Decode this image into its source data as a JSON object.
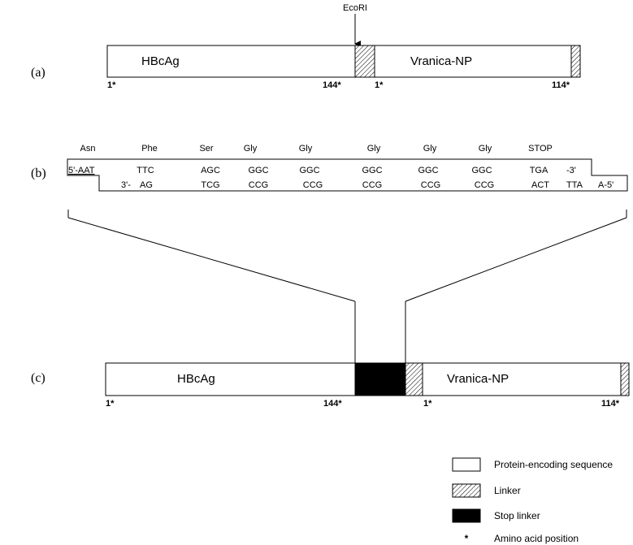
{
  "panel_a": {
    "panel_label": "(a)",
    "restriction_site": "EcoRI",
    "segment_left": "HBcAg",
    "segment_right": "Vranica-NP",
    "positions": [
      "1*",
      "144*",
      "1*",
      "114*"
    ]
  },
  "panel_b": {
    "panel_label": "(b)",
    "amino_acids": [
      "Asn",
      "Phe",
      "Ser",
      "Gly",
      "Gly",
      "Gly",
      "Gly",
      "Gly",
      "STOP"
    ],
    "top_strand": [
      "5'-AAT",
      "TTC",
      "AGC",
      "GGC",
      "GGC",
      "GGC",
      "GGC",
      "GGC",
      "TGA",
      "-3'"
    ],
    "bottom_strand": [
      "3'-",
      "AG",
      "TCG",
      "CCG",
      "CCG",
      "CCG",
      "CCG",
      "CCG",
      "ACT",
      "TTA",
      "A-5'"
    ]
  },
  "panel_c": {
    "panel_label": "(c)",
    "segment_left": "HBcAg",
    "segment_right": "Vranica-NP",
    "positions": [
      "1*",
      "144*",
      "1*",
      "114*"
    ]
  },
  "legend": {
    "items": [
      {
        "key": "protein",
        "label": "Protein-encoding sequence"
      },
      {
        "key": "linker",
        "label": "Linker"
      },
      {
        "key": "stop",
        "label": "Stop linker"
      },
      {
        "key": "asterisk",
        "label": "Amino acid position",
        "symbol": "*"
      }
    ]
  }
}
